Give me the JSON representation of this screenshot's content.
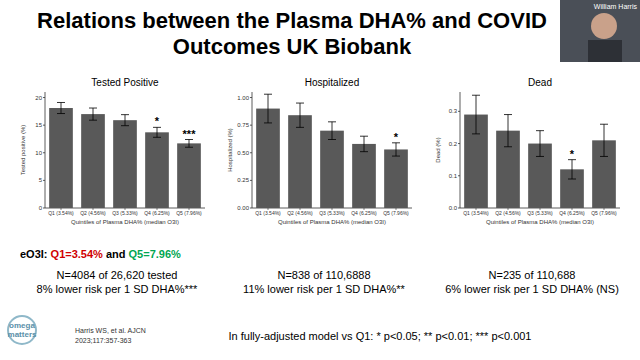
{
  "slide": {
    "title_lines": [
      "Relations between the Plasma DHA% and COVID",
      "Outcomes UK Biobank"
    ],
    "eo3i_parts": [
      "eO3I: ",
      "Q1=3.54%",
      " and ",
      "Q5=7.96%"
    ],
    "footnote": "In fully-adjusted model vs Q1: * p<0.05; ** p<0.01; *** p<0.001",
    "citation": [
      "Harris WS, et al. AJCN",
      "2023;117:357-363"
    ],
    "logo": [
      "omega",
      "matters"
    ],
    "speaker": "William Harris"
  },
  "chart_data": [
    {
      "type": "bar",
      "title": "Tested Positive",
      "y_label": "Tested positive (%)",
      "x_label": "Quintiles of Plasma DHA% (median O3I)",
      "categories": [
        "Q1 (3.54%)",
        "Q2 (4.56%)",
        "Q3 (5.33%)",
        "Q4 (6.25%)",
        "Q5 (7.96%)"
      ],
      "values": [
        18.1,
        17.0,
        15.9,
        13.7,
        11.7
      ],
      "errors": [
        1.0,
        1.1,
        1.0,
        0.9,
        0.7
      ],
      "bar_annotations": [
        null,
        null,
        null,
        "*",
        "***"
      ],
      "color": "#595959",
      "ylim": [
        0,
        21
      ],
      "yticks": [
        0,
        5,
        10,
        15,
        20
      ],
      "grid": false,
      "annotations": [
        "N=4084 of 26,620 tested",
        "8% lower risk per 1 SD DHA%***"
      ]
    },
    {
      "type": "bar",
      "title": "Hospitalized",
      "y_label": "Hospitalized (%)",
      "x_label": "Quintiles of Plasma DHA% (median O3I)",
      "categories": [
        "Q1 (3.54%)",
        "Q2 (4.56%)",
        "Q3 (5.33%)",
        "Q4 (6.25%)",
        "Q5 (7.96%)"
      ],
      "values": [
        0.9,
        0.84,
        0.7,
        0.58,
        0.53
      ],
      "errors": [
        0.13,
        0.11,
        0.08,
        0.07,
        0.06
      ],
      "bar_annotations": [
        null,
        null,
        null,
        null,
        "*"
      ],
      "color": "#595959",
      "ylim": [
        0,
        1.05
      ],
      "yticks": [
        {
          "value": 0,
          "label": "0.00"
        },
        0.25,
        {
          "value": 0.5,
          "label": "0.50"
        },
        0.75,
        {
          "value": 1,
          "label": "1.00"
        }
      ],
      "grid": false,
      "annotations": [
        "N=838 of 110,6888",
        "11% lower risk per 1 SD DHA%**"
      ]
    },
    {
      "type": "bar",
      "title": "Dead",
      "y_label": "Dead (%)",
      "x_label": "Quintiles of Plasma DHA% (median O3I)",
      "categories": [
        "Q1 (3.54%)",
        "Q2 (4.56%)",
        "Q3 (5.33%)",
        "Q4 (6.25%)",
        "Q5 (7.96%)"
      ],
      "values": [
        0.29,
        0.24,
        0.2,
        0.12,
        0.21
      ],
      "errors": [
        0.06,
        0.05,
        0.04,
        0.03,
        0.05
      ],
      "bar_annotations": [
        null,
        null,
        null,
        "*",
        null
      ],
      "color": "#595959",
      "ylim": [
        0,
        0.36
      ],
      "yticks": [
        {
          "value": 0,
          "label": "0.0"
        },
        0.1,
        0.2,
        0.3
      ],
      "grid": false,
      "annotations": [
        "N=235 of 110,688",
        "6% lower risk per 1 SD DHA% (NS)"
      ]
    }
  ]
}
